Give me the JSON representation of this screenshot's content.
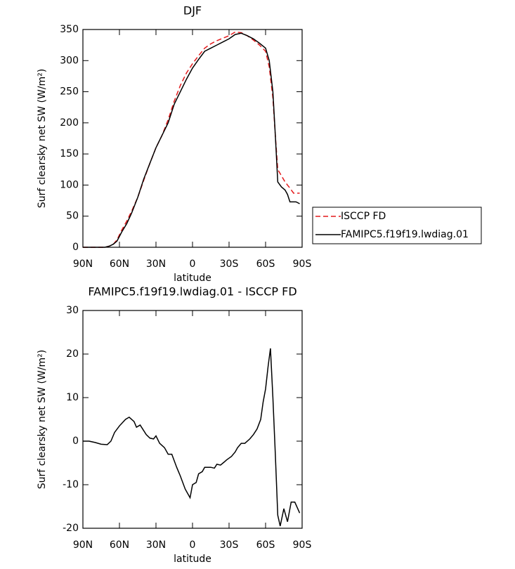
{
  "chart_data": [
    {
      "type": "line",
      "title": "DJF",
      "xlabel": "latitude",
      "ylabel": "Surf clearsky net SW (W/m²)",
      "x": [
        90,
        80,
        72,
        68,
        65,
        62,
        58,
        54,
        50,
        45,
        40,
        35,
        30,
        25,
        20,
        15,
        10,
        5,
        0,
        -5,
        -10,
        -15,
        -20,
        -25,
        -30,
        -35,
        -40,
        -45,
        -50,
        -55,
        -60,
        -63,
        -66,
        -68,
        -70,
        -73,
        -76,
        -78,
        -80,
        -83,
        -85,
        -88
      ],
      "series": [
        {
          "name": "ISCCP FD",
          "color": "#e41a1c",
          "linestyle": "dashed",
          "values": [
            0,
            0,
            0,
            2,
            5,
            12,
            28,
            42,
            58,
            80,
            108,
            135,
            160,
            180,
            205,
            235,
            260,
            280,
            295,
            308,
            320,
            327,
            332,
            336,
            340,
            346,
            345,
            340,
            333,
            325,
            315,
            290,
            240,
            180,
            125,
            115,
            105,
            100,
            95,
            87,
            87,
            87
          ]
        },
        {
          "name": "FAMIPC5.f19f19.lwdiag.01",
          "color": "#000000",
          "linestyle": "solid",
          "values": [
            0,
            0,
            0,
            2,
            5,
            10,
            25,
            38,
            55,
            80,
            110,
            135,
            160,
            180,
            200,
            230,
            250,
            270,
            288,
            302,
            315,
            320,
            325,
            330,
            335,
            342,
            344,
            340,
            335,
            328,
            320,
            300,
            250,
            180,
            105,
            97,
            92,
            85,
            73,
            73,
            73,
            70
          ]
        }
      ],
      "xlim": [
        90,
        -90
      ],
      "xticks": [
        {
          "value": 90,
          "label": "90N"
        },
        {
          "value": 60,
          "label": "60N"
        },
        {
          "value": 30,
          "label": "30N"
        },
        0,
        {
          "value": -30,
          "label": "30S"
        },
        {
          "value": -60,
          "label": "60S"
        },
        {
          "value": -90,
          "label": "90S"
        }
      ],
      "ylim": [
        0,
        350
      ],
      "yticks": [
        0,
        50,
        100,
        150,
        200,
        250,
        300,
        350
      ],
      "legend": "right"
    },
    {
      "type": "line",
      "title": "FAMIPC5.f19f19.lwdiag.01 - ISCCP FD",
      "xlabel": "latitude",
      "ylabel": "Surf clearsky net SW (W/m²)",
      "x": [
        90,
        85,
        80,
        75,
        70,
        67,
        64,
        60,
        55,
        52,
        48,
        46,
        43,
        38,
        35,
        32,
        30,
        27,
        23,
        20,
        17,
        13,
        10,
        6,
        3,
        2,
        0,
        -3,
        -5,
        -8,
        -10,
        -15,
        -18,
        -20,
        -23,
        -26,
        -28,
        -32,
        -35,
        -37,
        -40,
        -43,
        -47,
        -50,
        -53,
        -56,
        -58,
        -60,
        -62,
        -64,
        -66,
        -68,
        -70,
        -72,
        -75,
        -78,
        -81,
        -84,
        -88
      ],
      "values": [
        0,
        0,
        -0.3,
        -0.7,
        -0.8,
        0,
        2,
        3.5,
        5,
        5.5,
        4.5,
        3.2,
        3.7,
        1.5,
        0.7,
        0.5,
        1.2,
        -0.5,
        -1.5,
        -3,
        -3,
        -6,
        -8,
        -11,
        -12.5,
        -13,
        -10,
        -9.5,
        -7.5,
        -7,
        -6,
        -6,
        -6.2,
        -5.3,
        -5.5,
        -4.8,
        -4.3,
        -3.5,
        -2.5,
        -1.5,
        -0.5,
        -0.5,
        0.5,
        1.5,
        2.8,
        5,
        9,
        12,
        17,
        21.3,
        10,
        -3,
        -17,
        -19.5,
        -15.5,
        -18.5,
        -14,
        -14,
        -16.5
      ],
      "color": "#000000",
      "xlim": [
        90,
        -90
      ],
      "xticks": [
        {
          "value": 90,
          "label": "90N"
        },
        {
          "value": 60,
          "label": "60N"
        },
        {
          "value": 30,
          "label": "30N"
        },
        0,
        {
          "value": -30,
          "label": "30S"
        },
        {
          "value": -60,
          "label": "60S"
        },
        {
          "value": -90,
          "label": "90S"
        }
      ],
      "ylim": [
        -20,
        30
      ],
      "yticks": [
        -20,
        -10,
        0,
        10,
        20,
        30
      ]
    }
  ]
}
